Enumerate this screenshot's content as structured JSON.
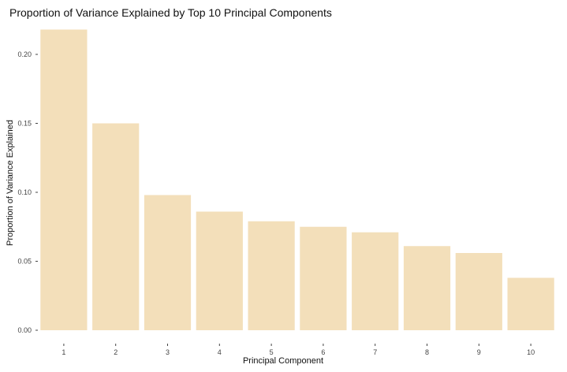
{
  "chart_data": {
    "type": "bar",
    "title": "Proportion of Variance Explained by Top 10 Principal Components",
    "xlabel": "Principal Component",
    "ylabel": "Proportion of Variance Explained",
    "categories": [
      "1",
      "2",
      "3",
      "4",
      "5",
      "6",
      "7",
      "8",
      "9",
      "10"
    ],
    "values": [
      0.218,
      0.15,
      0.098,
      0.086,
      0.079,
      0.075,
      0.071,
      0.061,
      0.056,
      0.038
    ],
    "ylim": [
      0,
      0.22
    ],
    "yticks": [
      0.0,
      0.05,
      0.1,
      0.15,
      0.2
    ],
    "ytick_labels": [
      "0.00",
      "0.05",
      "0.10",
      "0.15",
      "0.20"
    ],
    "grid": false,
    "legend": "none",
    "colors": {
      "bar": "#f3dfba",
      "tick": "#444444",
      "text": "#111111"
    }
  }
}
